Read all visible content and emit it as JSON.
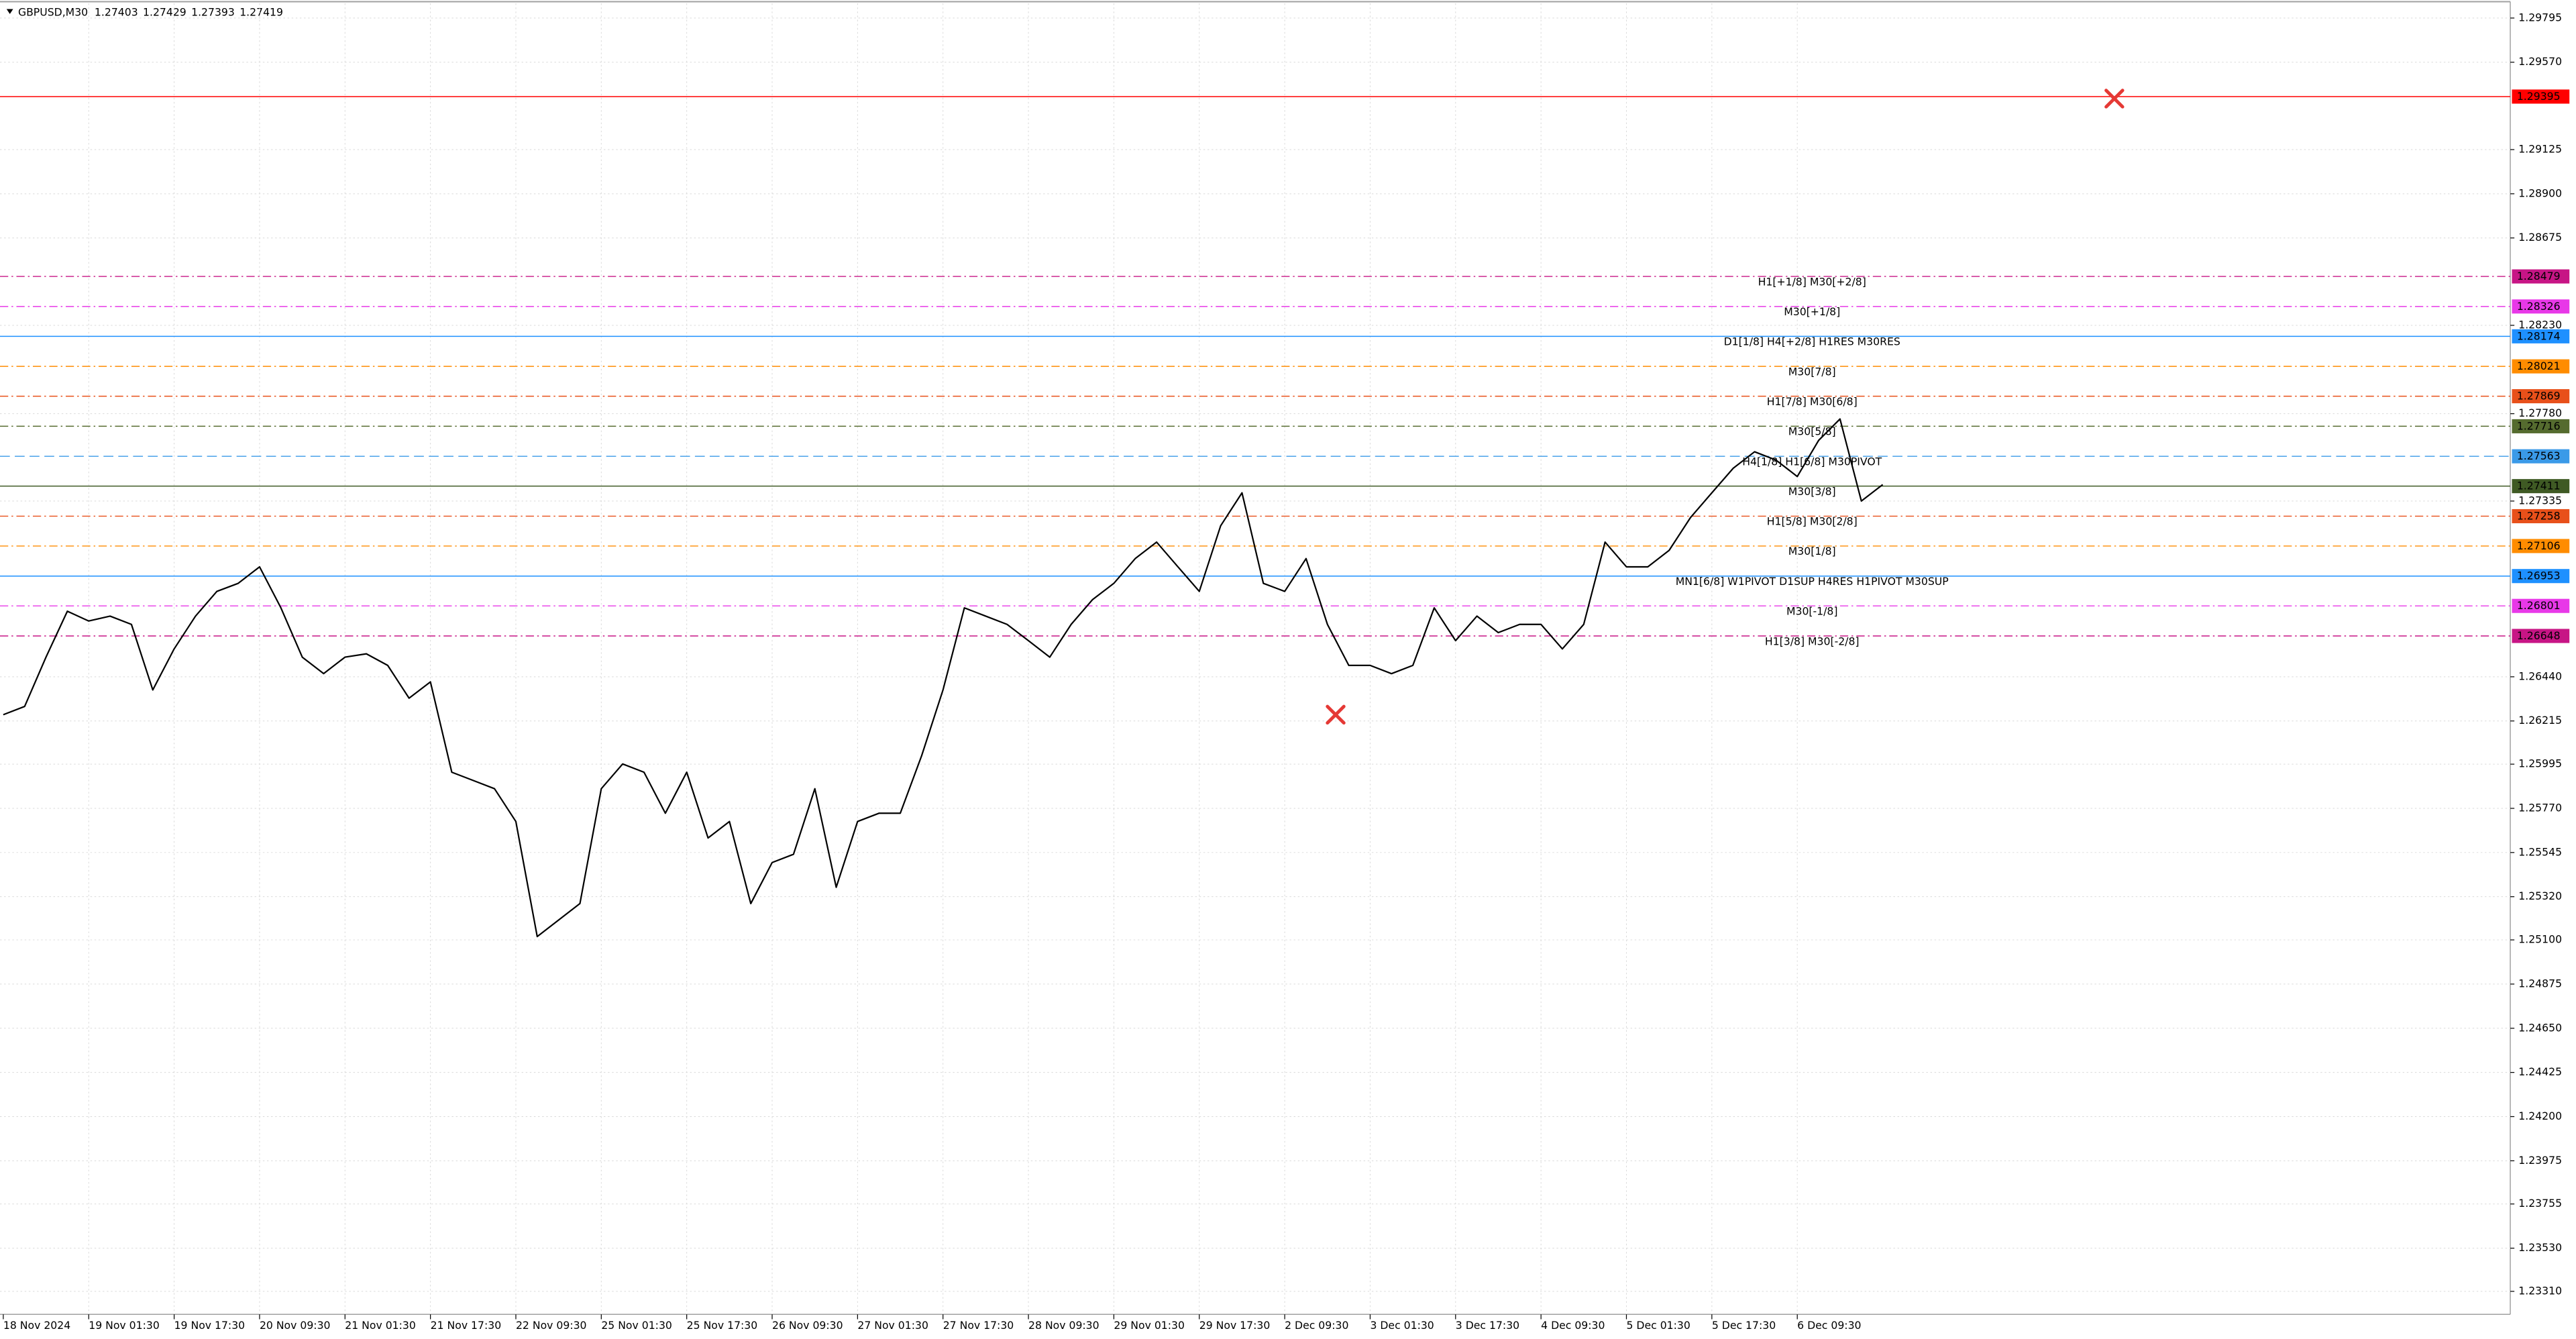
{
  "chart_data": {
    "type": "line",
    "title": "GBPUSD,M30",
    "ohlc": [
      1.27403,
      1.27429,
      1.27393,
      1.27419
    ],
    "color": "#000000",
    "grid": true,
    "ylim": [
      1.23193,
      1.2987
    ],
    "yticks": [
      1.29795,
      {
        "value": 1.2957,
        "label": "1.29570"
      },
      1.29125,
      {
        "value": 1.289,
        "label": "1.28900"
      },
      1.28675,
      {
        "value": 1.2823,
        "label": "1.28230"
      },
      {
        "value": 1.2778,
        "label": "1.27780"
      },
      1.27335,
      {
        "value": 1.2644,
        "label": "1.26440"
      },
      1.26215,
      1.25995,
      {
        "value": 1.2577,
        "label": "1.25770"
      },
      1.25545,
      {
        "value": 1.2532,
        "label": "1.25320"
      },
      {
        "value": 1.251,
        "label": "1.25100"
      },
      1.24875,
      {
        "value": 1.2465,
        "label": "1.24650"
      },
      1.24425,
      {
        "value": 1.242,
        "label": "1.24200"
      },
      1.23975,
      1.23755,
      {
        "value": 1.2353,
        "label": "1.23530"
      },
      {
        "value": 1.2331,
        "label": "1.23310"
      }
    ],
    "categories": [
      "18 Nov 2024",
      null,
      null,
      null,
      "19 Nov 01:30",
      null,
      null,
      null,
      "19 Nov 17:30",
      null,
      null,
      null,
      "20 Nov 09:30",
      null,
      null,
      null,
      "21 Nov 01:30",
      null,
      null,
      null,
      "21 Nov 17:30",
      null,
      null,
      null,
      "22 Nov 09:30",
      null,
      null,
      null,
      "25 Nov 01:30",
      null,
      null,
      null,
      "25 Nov 17:30",
      null,
      null,
      null,
      "26 Nov 09:30",
      null,
      null,
      null,
      "27 Nov 01:30",
      null,
      null,
      null,
      "27 Nov 17:30",
      null,
      null,
      null,
      "28 Nov 09:30",
      null,
      null,
      null,
      "29 Nov 01:30",
      null,
      null,
      null,
      "29 Nov 17:30",
      null,
      null,
      null,
      "2 Dec 09:30",
      null,
      null,
      null,
      "3 Dec 01:30",
      null,
      null,
      null,
      "3 Dec 17:30",
      null,
      null,
      null,
      "4 Dec 09:30",
      null,
      null,
      null,
      "5 Dec 01:30",
      null,
      null,
      null,
      "5 Dec 17:30",
      null,
      null,
      null,
      "6 Dec 09:30",
      null,
      null,
      null,
      null
    ],
    "values": [
      1.26247,
      1.26289,
      1.2654,
      1.26774,
      1.26724,
      1.26749,
      1.26707,
      1.26373,
      1.26582,
      1.26749,
      1.26875,
      1.26916,
      1.27,
      1.26791,
      1.2654,
      1.26456,
      1.2654,
      1.26557,
      1.26498,
      1.26331,
      1.26414,
      1.25954,
      1.25912,
      1.2587,
      1.25703,
      1.25117,
      1.25201,
      1.25285,
      1.2587,
      1.25996,
      1.25954,
      1.25745,
      1.25954,
      1.25619,
      1.25703,
      1.25285,
      1.25494,
      1.25536,
      1.2587,
      1.25368,
      1.25703,
      1.25745,
      1.25745,
      1.26038,
      1.26373,
      1.26791,
      1.26749,
      1.26707,
      1.26624,
      1.2654,
      1.26707,
      1.26833,
      1.26916,
      1.27042,
      1.27126,
      1.27,
      1.26875,
      1.27209,
      1.27377,
      1.26916,
      1.26875,
      1.27042,
      1.26707,
      1.26498,
      1.26498,
      1.26456,
      1.26498,
      1.26791,
      1.26624,
      1.26749,
      1.26665,
      1.26707,
      1.26707,
      1.26582,
      1.26707,
      1.27126,
      1.27,
      1.27,
      1.27084,
      1.27251,
      1.27377,
      1.27502,
      1.27586,
      1.27544,
      1.2746,
      1.27644,
      1.27753,
      1.27335,
      1.27419
    ],
    "levels": [
      {
        "value": 1.29395,
        "color": "#ff0000",
        "style": "solid"
      },
      {
        "value": 1.28479,
        "label": "H1[+1/8] M30[+2/8]",
        "color": "#c71585",
        "style": "dashdot"
      },
      {
        "value": 1.28326,
        "label": "M30[+1/8]",
        "color": "#e838e8",
        "style": "dashdot"
      },
      {
        "value": 1.28174,
        "label": "D1[1/8] H4[+2/8] H1RES M30RES",
        "color": "#1e90ff",
        "style": "solid"
      },
      {
        "value": 1.28021,
        "label": "M30[7/8]",
        "color": "#ff8c00",
        "style": "dashdot"
      },
      {
        "value": 1.27869,
        "label": "H1[7/8] M30[6/8]",
        "color": "#e8501a",
        "style": "dashdot"
      },
      {
        "value": 1.27716,
        "label": "M30[5/8]",
        "color": "#556b2f",
        "style": "dashdot"
      },
      {
        "value": 1.27563,
        "label": "H4[1/8] H1[6/8] M30PIVOT",
        "color": "#3a9ae8",
        "style": "dashed"
      },
      {
        "value": 1.27411,
        "label": "M30[3/8]",
        "color": "#3f5a24",
        "style": "solid"
      },
      {
        "value": 1.27258,
        "label": "H1[5/8] M30[2/8]",
        "color": "#e8501a",
        "style": "dashdot"
      },
      {
        "value": 1.27106,
        "label": "M30[1/8]",
        "color": "#ff8c00",
        "style": "dashdot"
      },
      {
        "value": 1.26953,
        "label": "MN1[6/8] W1PIVOT D1SUP H4RES H1PIVOT M30SUP",
        "color": "#1e90ff",
        "style": "solid"
      },
      {
        "value": 1.26801,
        "label": "M30[-1/8]",
        "color": "#e838e8",
        "style": "dashdot"
      },
      {
        "value": 1.26648,
        "label": "H1[3/8] M30[-2/8]",
        "color": "#c71585",
        "style": "dashdot"
      }
    ]
  }
}
